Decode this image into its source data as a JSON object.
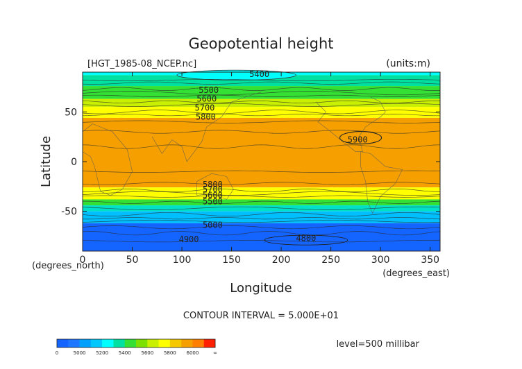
{
  "chart_data": {
    "type": "contour-map",
    "title": "Geopotential height",
    "file_label": "[HGT_1985-08_NCEP.nc]",
    "units_label": "(units:m)",
    "xlabel": "Longitude",
    "ylabel": "Latitude",
    "x_unit_label": "(degrees_east)",
    "y_unit_label": "(degrees_north)",
    "xlim": [
      0,
      360
    ],
    "ylim": [
      -90,
      90
    ],
    "x_ticks": [
      {
        "value": 0,
        "label": "0"
      },
      {
        "value": 50,
        "label": "50"
      },
      {
        "value": 100,
        "label": "100"
      },
      {
        "value": 150,
        "label": "150"
      },
      {
        "value": 200,
        "label": "200"
      },
      {
        "value": 250,
        "label": "250"
      },
      {
        "value": 300,
        "label": "300"
      },
      {
        "value": 350,
        "label": "350"
      }
    ],
    "y_ticks": [
      {
        "value": 50,
        "label": "50"
      },
      {
        "value": 0,
        "label": "0"
      },
      {
        "value": -50,
        "label": "-50"
      }
    ],
    "bands": [
      {
        "lat_top": 90,
        "lat_bottom": 87,
        "color": "#00ffff"
      },
      {
        "lat_top": 87,
        "lat_bottom": 76,
        "color": "#00e0a0"
      },
      {
        "lat_top": 76,
        "lat_bottom": 63,
        "color": "#33e033"
      },
      {
        "lat_top": 63,
        "lat_bottom": 55,
        "color": "#c8f000"
      },
      {
        "lat_top": 55,
        "lat_bottom": 44,
        "color": "#ffff00"
      },
      {
        "lat_top": 44,
        "lat_bottom": -26,
        "color": "#f5a000"
      },
      {
        "lat_top": -26,
        "lat_bottom": -38,
        "color": "#ffff00"
      },
      {
        "lat_top": -38,
        "lat_bottom": -44,
        "color": "#33e033"
      },
      {
        "lat_top": -44,
        "lat_bottom": -50,
        "color": "#00e0c8"
      },
      {
        "lat_top": -50,
        "lat_bottom": -62,
        "color": "#00bfff"
      },
      {
        "lat_top": -62,
        "lat_bottom": -90,
        "color": "#1464ff"
      }
    ],
    "low_region": {
      "lon_min": 95,
      "lon_max": 215,
      "lat_center": 87,
      "lat_half_height": 5,
      "color": "#00ffff"
    },
    "contour_labels": [
      {
        "text": "5400",
        "lon": 178,
        "lat": 88
      },
      {
        "text": "5500",
        "lon": 127,
        "lat": 72
      },
      {
        "text": "5600",
        "lon": 125,
        "lat": 63
      },
      {
        "text": "5700",
        "lon": 123,
        "lat": 54
      },
      {
        "text": "5800",
        "lon": 124,
        "lat": 45
      },
      {
        "text": "5900",
        "lon": 277,
        "lat": 22
      },
      {
        "text": "5800",
        "lon": 131,
        "lat": -23
      },
      {
        "text": "5700",
        "lon": 131,
        "lat": -28
      },
      {
        "text": "5600",
        "lon": 131,
        "lat": -34
      },
      {
        "text": "5500",
        "lon": 131,
        "lat": -40
      },
      {
        "text": "5000",
        "lon": 131,
        "lat": -64
      },
      {
        "text": "4900",
        "lon": 107,
        "lat": -78
      },
      {
        "text": "4800",
        "lon": 225,
        "lat": -77
      }
    ],
    "contour_interval_text": "CONTOUR INTERVAL = 5.000E+01",
    "level_text": "level=500 millibar",
    "colorbar": {
      "colors": [
        "#1464ff",
        "#1e78ff",
        "#00a0ff",
        "#00c8ff",
        "#00ffff",
        "#00e0a0",
        "#33e033",
        "#7ce000",
        "#c8f000",
        "#ffff00",
        "#f5c800",
        "#f5a000",
        "#ff8000",
        "#ff2000"
      ],
      "labels": [
        "0",
        "5000",
        "5200",
        "5400",
        "5600",
        "5800",
        "6000",
        "∞"
      ]
    }
  }
}
